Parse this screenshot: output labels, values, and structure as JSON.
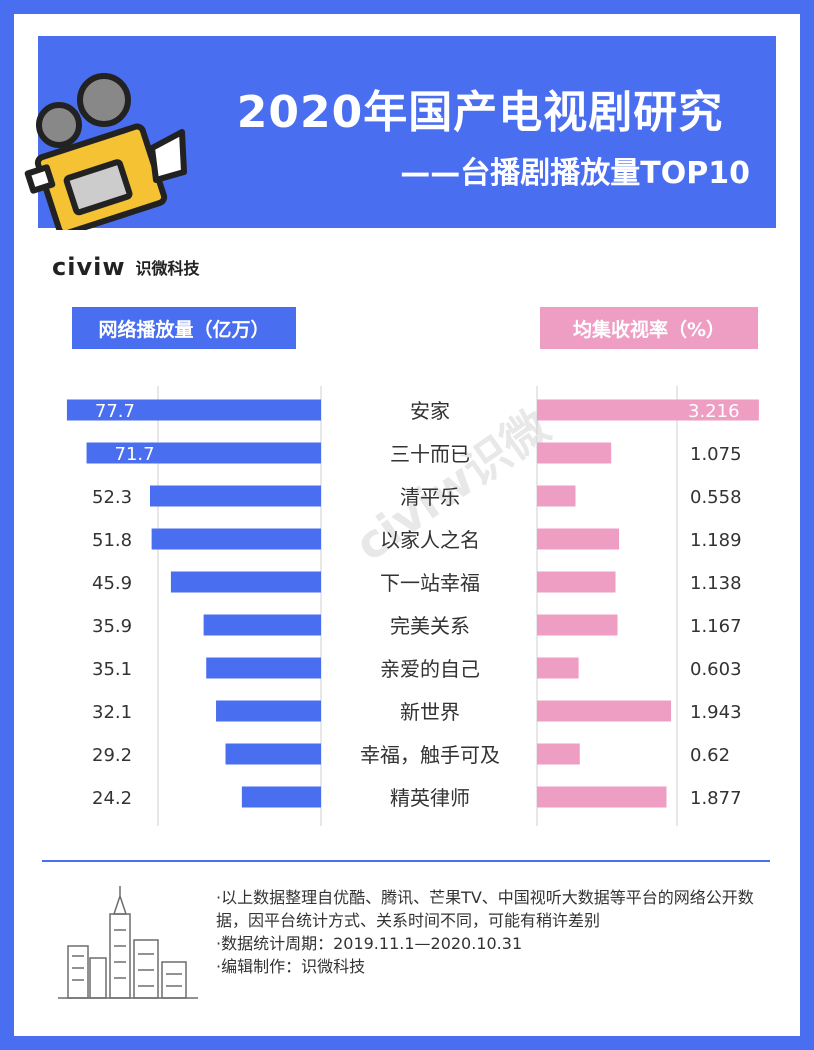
{
  "header": {
    "title": "2020年国产电视剧研究",
    "subtitle": "——台播剧播放量TOP10"
  },
  "brand": {
    "logo_text": "civiw",
    "name": "识微科技"
  },
  "legend": {
    "left": "网络播放量（亿万）",
    "right": "均集收视率（%）"
  },
  "watermark": "civiw识微",
  "colors": {
    "primary": "#4a6ef0",
    "pink": "#ef9ec3",
    "camera_yellow": "#f5c233"
  },
  "chart_data": {
    "type": "bar",
    "categories": [
      "安家",
      "三十而已",
      "清平乐",
      "以家人之名",
      "下一站幸福",
      "完美关系",
      "亲爱的自己",
      "新世界",
      "幸福，触手可及",
      "精英律师"
    ],
    "series": [
      {
        "name": "网络播放量（亿万）",
        "values": [
          77.7,
          71.7,
          52.3,
          51.8,
          45.9,
          35.9,
          35.1,
          32.1,
          29.2,
          24.2
        ]
      },
      {
        "name": "均集收视率（%）",
        "values": [
          3.216,
          1.075,
          0.558,
          1.189,
          1.138,
          1.167,
          0.603,
          1.943,
          0.62,
          1.877
        ]
      }
    ],
    "labels_left": [
      "77.7",
      "71.7",
      "52.3",
      "51.8",
      "45.9",
      "35.9",
      "35.1",
      "32.1",
      "29.2",
      "24.2"
    ],
    "labels_right": [
      "3.216",
      "1.075",
      "0.558",
      "1.189",
      "1.138",
      "1.167",
      "0.603",
      "1.943",
      "0.62",
      "1.877"
    ]
  },
  "footnotes": [
    "·以上数据整理自优酷、腾讯、芒果TV、中国视听大数据等平台的网络公开数据，因平台统计方式、关系时间不同，可能有稍许差别",
    "·数据统计周期：2019.11.1—2020.10.31",
    "·编辑制作：识微科技"
  ]
}
